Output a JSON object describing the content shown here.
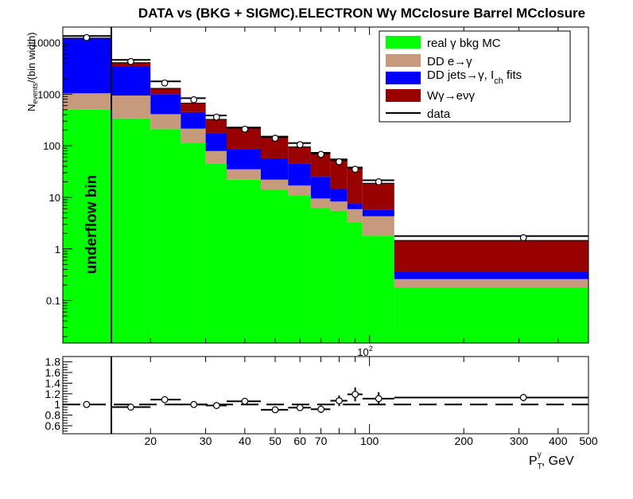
{
  "chart_data": [
    {
      "type": "bar",
      "stacked": true,
      "title": "DATA vs (BKG + SIGMC).ELECTRON Wγ  MCclosure Barrel  MCclosure",
      "ylabel_main": "N",
      "ylabel_sub": "events",
      "ylabel_tail": "/(bin width)",
      "ylog": true,
      "xlog": true,
      "ylim": [
        0.015,
        20000
      ],
      "xlim": [
        10.5,
        500
      ],
      "ytick_labels": [
        "0.1",
        "1",
        "10",
        "100",
        "1000",
        "10000"
      ],
      "ytick_values": [
        0.1,
        1,
        10,
        100,
        1000,
        10000
      ],
      "x_top_label": "10",
      "x_top_label_exp": "2",
      "annotation": "underflow bin",
      "underflow_range": [
        10.5,
        15
      ],
      "bin_edges": [
        10.5,
        15,
        20,
        25,
        30,
        35,
        45,
        55,
        65,
        75,
        85,
        95,
        120,
        500
      ],
      "series": [
        {
          "name": "real γ bkg MC",
          "color": "#00ff00",
          "values": [
            500,
            340,
            210,
            115,
            45,
            22,
            14,
            11,
            6.2,
            5.5,
            3.3,
            1.8,
            0.18
          ]
        },
        {
          "name": "DD e→γ",
          "color": "#c89a7c",
          "values": [
            540,
            600,
            200,
            100,
            34,
            13,
            8,
            6,
            3.3,
            2.8,
            2.6,
            2.5,
            0.08
          ]
        },
        {
          "name": "DD jets→γ, I_ch fits",
          "color": "#0000ff",
          "values": [
            10960,
            2560,
            590,
            235,
            95,
            52,
            35,
            28,
            15.5,
            6.2,
            1.6,
            1.5,
            0.1
          ]
        },
        {
          "name": "Wγ→eνγ",
          "color": "#990000",
          "values": [
            200,
            580,
            300,
            220,
            150,
            135,
            88,
            50,
            45,
            41,
            31,
            13,
            1.1
          ]
        }
      ],
      "data": {
        "name": "data",
        "x": [
          12.5,
          17.3,
          22.2,
          27.5,
          32.5,
          40,
          50,
          60,
          70,
          80,
          90,
          107,
          310
        ],
        "y": [
          12500,
          4300,
          1650,
          780,
          360,
          210,
          140,
          105,
          68,
          49,
          35,
          20,
          1.65
        ]
      },
      "legend_position": "top-right"
    },
    {
      "type": "scatter",
      "title": "",
      "xlabel": "P",
      "xlabel_sub": "T",
      "xlabel_sup": "γ",
      "xlabel_tail": ", GeV",
      "xlog": true,
      "xlim": [
        10.5,
        500
      ],
      "ylim": [
        0.45,
        1.9
      ],
      "ytick_labels": [
        "0.6",
        "0.8",
        "1",
        "1.2",
        "1.4",
        "1.6",
        "1.8"
      ],
      "ytick_values": [
        0.6,
        0.8,
        1.0,
        1.2,
        1.4,
        1.6,
        1.8
      ],
      "xtick_labels": [
        "20",
        "30",
        "40",
        "50",
        "60",
        "70",
        "100",
        "200",
        "300",
        "400",
        "500"
      ],
      "xtick_values": [
        20,
        30,
        40,
        50,
        60,
        70,
        100,
        200,
        300,
        400,
        500
      ],
      "reference_line": 1.0,
      "points": [
        {
          "x": 12.5,
          "y": 1.0,
          "xerr": [
            0,
            0
          ],
          "yerr": 0.0
        },
        {
          "x": 17.3,
          "y": 0.95,
          "xerr": [
            15,
            20
          ],
          "yerr": 0.02
        },
        {
          "x": 22.2,
          "y": 1.09,
          "xerr": [
            20,
            25
          ],
          "yerr": 0.03
        },
        {
          "x": 27.5,
          "y": 1.0,
          "xerr": [
            25,
            30
          ],
          "yerr": 0.03
        },
        {
          "x": 32.5,
          "y": 0.98,
          "xerr": [
            30,
            35
          ],
          "yerr": 0.04
        },
        {
          "x": 40,
          "y": 1.06,
          "xerr": [
            35,
            45
          ],
          "yerr": 0.05
        },
        {
          "x": 50,
          "y": 0.9,
          "xerr": [
            45,
            55
          ],
          "yerr": 0.05
        },
        {
          "x": 60,
          "y": 0.94,
          "xerr": [
            55,
            65
          ],
          "yerr": 0.06
        },
        {
          "x": 70,
          "y": 0.91,
          "xerr": [
            65,
            75
          ],
          "yerr": 0.07
        },
        {
          "x": 80,
          "y": 1.07,
          "xerr": [
            75,
            85
          ],
          "yerr": 0.1
        },
        {
          "x": 90,
          "y": 1.19,
          "xerr": [
            85,
            95
          ],
          "yerr": 0.13
        },
        {
          "x": 107,
          "y": 1.11,
          "xerr": [
            95,
            120
          ],
          "yerr": 0.12
        },
        {
          "x": 310,
          "y": 1.13,
          "xerr": [
            120,
            500
          ],
          "yerr": 0.07
        }
      ]
    }
  ]
}
